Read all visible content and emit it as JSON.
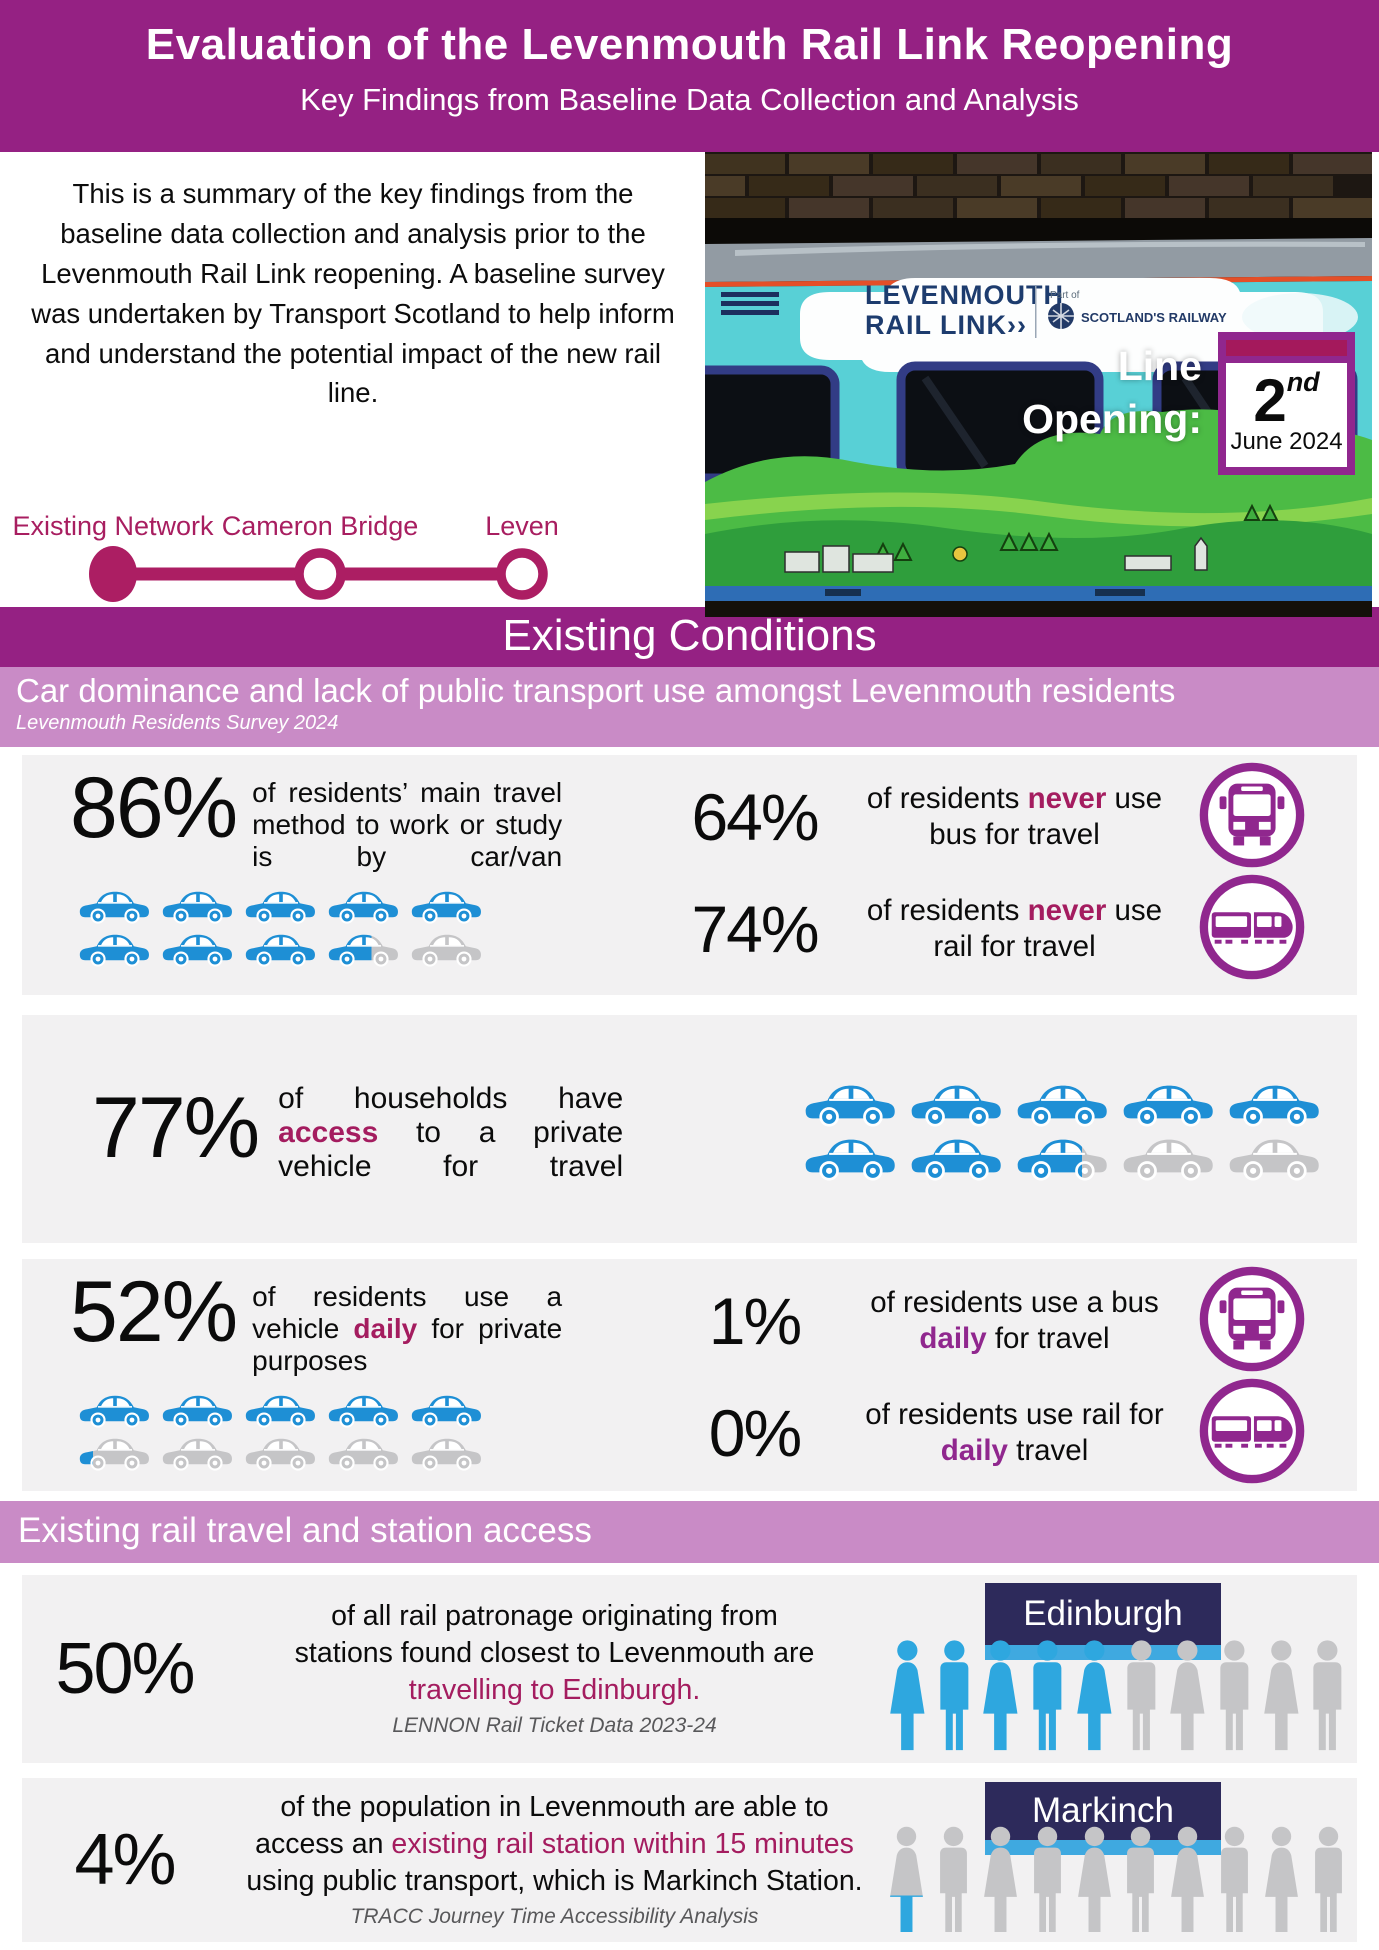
{
  "header": {
    "title": "Evaluation of the Levenmouth Rail Link Reopening",
    "subtitle": "Key Findings from Baseline Data Collection and Analysis"
  },
  "intro": {
    "text": "This is a summary of the key findings from the baseline data collection and analysis prior to the Levenmouth Rail Link reopening. A baseline survey was undertaken by Transport Scotland to help inform and understand the potential impact of the new rail line."
  },
  "line_diagram": {
    "stations": [
      {
        "label": "Existing Network",
        "filled": true
      },
      {
        "label": "Cameron Bridge",
        "filled": false
      },
      {
        "label": "Leven",
        "filled": false
      }
    ]
  },
  "photo": {
    "logo_line1": "LEVENMOUTH",
    "logo_line2": "RAIL LINK››",
    "part_of": "Part of",
    "brand": "SCOTLAND'S RAILWAY",
    "line_opening_label": "Line\nOpening:",
    "date_day": "2",
    "date_suffix": "nd",
    "date_month_year": "June 2024"
  },
  "sections": {
    "existing_conditions": "Existing Conditions",
    "car_dominance": "Car dominance and lack of public transport use amongst Levenmouth residents",
    "survey_source": "Levenmouth Residents Survey 2024",
    "rail_access": "Existing rail travel and station access"
  },
  "stats": {
    "car_method": {
      "value": "86%",
      "text": [
        {
          "t": "of residents’ main travel method to work or study is by car/van"
        }
      ],
      "pictogram": {
        "type": "car",
        "car_w": 74,
        "per_row": 5,
        "fills": [
          1,
          1,
          1,
          1,
          1,
          1,
          1,
          1,
          0.6,
          0
        ]
      }
    },
    "never_bus": {
      "value": "64%",
      "text": [
        {
          "t": "of residents "
        },
        {
          "t": "never",
          "c": "crimsonb"
        },
        {
          "t": " use bus for travel"
        }
      ]
    },
    "never_rail": {
      "value": "74%",
      "text": [
        {
          "t": "of residents "
        },
        {
          "t": "never",
          "c": "crimsonb"
        },
        {
          "t": " use rail for travel"
        }
      ]
    },
    "vehicle_access": {
      "value": "77%",
      "text": [
        {
          "t": "of households have "
        },
        {
          "t": "access",
          "c": "crimsonb"
        },
        {
          "t": " to a private vehicle for travel"
        }
      ],
      "pictogram": {
        "type": "car",
        "car_w": 96,
        "per_row": 5,
        "fills": [
          1,
          1,
          1,
          1,
          1,
          1,
          1,
          0.7,
          0,
          0
        ]
      }
    },
    "daily_vehicle": {
      "value": "52%",
      "text": [
        {
          "t": "of residents use a vehicle "
        },
        {
          "t": "daily",
          "c": "crimsonb"
        },
        {
          "t": " for private purposes"
        }
      ],
      "pictogram": {
        "type": "car",
        "car_w": 74,
        "per_row": 5,
        "fills": [
          1,
          1,
          1,
          1,
          1,
          0.2,
          0,
          0,
          0,
          0
        ]
      }
    },
    "daily_bus": {
      "value": "1%",
      "text": [
        {
          "t": "of residents use a bus "
        },
        {
          "t": "daily",
          "c": "purpleb"
        },
        {
          "t": " for travel"
        }
      ]
    },
    "daily_rail": {
      "value": "0%",
      "text": [
        {
          "t": "of residents use rail for "
        },
        {
          "t": "daily",
          "c": "purpleb"
        },
        {
          "t": " travel"
        }
      ]
    },
    "edinburgh": {
      "value": "50%",
      "text": [
        {
          "t": "of all rail patronage originating from\nstations found closest to Levenmouth are\n"
        },
        {
          "t": "travelling to Edinburgh.",
          "c": "crimson"
        }
      ],
      "source": "LENNON Rail Ticket Data 2023-24",
      "sign": "Edinburgh",
      "pictogram": {
        "type": "person",
        "person_h": 118,
        "fills": [
          1,
          1,
          1,
          1,
          1,
          0,
          0,
          0,
          0,
          0
        ],
        "genders": [
          "f",
          "m",
          "f",
          "m",
          "f",
          "m",
          "f",
          "m",
          "f",
          "m"
        ]
      }
    },
    "markinch": {
      "value": "4%",
      "text": [
        {
          "t": "of the population in Levenmouth are able to\naccess an "
        },
        {
          "t": "existing rail station within 15 minutes",
          "c": "crimson"
        },
        {
          "t": "\nusing public transport, which is Markinch Station."
        }
      ],
      "source": "TRACC Journey Time Accessibility Analysis",
      "sign": "Markinch",
      "pictogram": {
        "type": "person",
        "person_h": 112,
        "fills": [
          0.38,
          0,
          0,
          0,
          0,
          0,
          0,
          0,
          0,
          0
        ],
        "genders": [
          "f",
          "m",
          "f",
          "m",
          "f",
          "m",
          "f",
          "m",
          "f",
          "m"
        ]
      }
    }
  },
  "colors": {
    "header_magenta": "#952183",
    "banner_lilac": "#C98BC6",
    "accent_crimson": "#A41C5F",
    "accent_purple": "#90278E",
    "diagram_crimson": "#AC1E63",
    "car_blue": "#1E8FD5",
    "person_blue": "#2EA7DF",
    "icon_gray": "#C5C5C7",
    "block_bg": "#F2F1F2",
    "sign_navy": "#2D2A5B",
    "sign_bar_blue": "#3FA9E0"
  }
}
